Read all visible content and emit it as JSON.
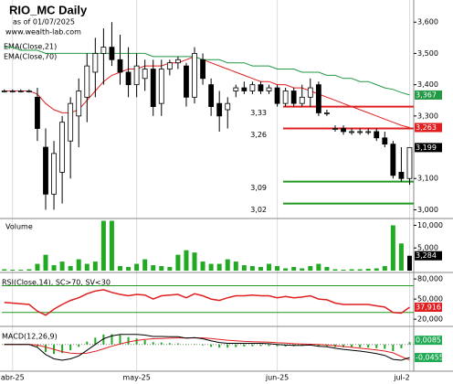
{
  "chart_data": [
    {
      "type": "candlestick",
      "title": "RIO_MC Daily",
      "subtitle": "as of 01/07/2025",
      "source": "www.wealth-lab.com",
      "ylim": [
        2.975,
        3.665
      ],
      "yticks": [
        {
          "value": 3.6,
          "label": "3,600"
        },
        {
          "value": 3.5,
          "label": "3,500"
        },
        {
          "value": 3.4,
          "label": "3,400"
        },
        {
          "value": 3.3,
          "label": "3,300"
        },
        {
          "value": 3.1,
          "label": "3,100"
        },
        {
          "value": 3.0,
          "label": "3,000"
        }
      ],
      "up_color": "#ffffff",
      "down_color": "#000000",
      "open": [
        3.38,
        3.38,
        3.38,
        3.38,
        3.36,
        3.2,
        3.05,
        3.12,
        3.22,
        3.3,
        3.36,
        3.44,
        3.5,
        3.52,
        3.48,
        3.44,
        3.4,
        3.42,
        3.45,
        3.34,
        3.45,
        3.47,
        3.46,
        3.36,
        3.48,
        3.4,
        3.34,
        3.32,
        3.38,
        3.39,
        3.38,
        3.4,
        3.38,
        3.39,
        3.34,
        3.38,
        3.34,
        3.36,
        3.4,
        3.31,
        3.26,
        3.26,
        3.25,
        3.25,
        3.25,
        3.25,
        3.23,
        3.21,
        3.12,
        3.1
      ],
      "high": [
        3.385,
        3.385,
        3.385,
        3.385,
        3.39,
        3.26,
        3.22,
        3.3,
        3.36,
        3.42,
        3.5,
        3.55,
        3.58,
        3.6,
        3.56,
        3.52,
        3.5,
        3.48,
        3.48,
        3.48,
        3.48,
        3.49,
        3.47,
        3.52,
        3.5,
        3.42,
        3.38,
        3.36,
        3.4,
        3.41,
        3.41,
        3.41,
        3.4,
        3.4,
        3.39,
        3.39,
        3.4,
        3.42,
        3.41,
        3.32,
        3.27,
        3.27,
        3.26,
        3.26,
        3.26,
        3.26,
        3.25,
        3.22,
        3.2,
        3.2
      ],
      "low": [
        3.375,
        3.375,
        3.375,
        3.375,
        3.22,
        3.0,
        3.0,
        3.02,
        3.1,
        3.2,
        3.28,
        3.36,
        3.4,
        3.46,
        3.4,
        3.36,
        3.36,
        3.38,
        3.3,
        3.3,
        3.43,
        3.45,
        3.33,
        3.34,
        3.4,
        3.3,
        3.25,
        3.26,
        3.36,
        3.37,
        3.37,
        3.37,
        3.37,
        3.33,
        3.33,
        3.33,
        3.33,
        3.33,
        3.3,
        3.3,
        3.25,
        3.24,
        3.24,
        3.24,
        3.24,
        3.22,
        3.2,
        3.1,
        3.09,
        3.08
      ],
      "close": [
        3.38,
        3.38,
        3.38,
        3.38,
        3.26,
        3.05,
        3.18,
        3.28,
        3.34,
        3.38,
        3.46,
        3.5,
        3.52,
        3.48,
        3.44,
        3.4,
        3.46,
        3.45,
        3.33,
        3.45,
        3.47,
        3.48,
        3.36,
        3.5,
        3.42,
        3.33,
        3.3,
        3.34,
        3.39,
        3.38,
        3.4,
        3.38,
        3.39,
        3.34,
        3.38,
        3.34,
        3.36,
        3.39,
        3.31,
        3.31,
        3.26,
        3.25,
        3.25,
        3.25,
        3.25,
        3.23,
        3.21,
        3.11,
        3.1,
        3.199
      ],
      "close_last_label": "3,199",
      "series": [
        {
          "name": "EMA(Close,21)",
          "color": "#e02020",
          "last_label": "3,263",
          "values": [
            3.38,
            3.38,
            3.38,
            3.38,
            3.37,
            3.34,
            3.32,
            3.31,
            3.31,
            3.32,
            3.35,
            3.38,
            3.41,
            3.43,
            3.44,
            3.45,
            3.45,
            3.46,
            3.46,
            3.46,
            3.47,
            3.47,
            3.48,
            3.49,
            3.48,
            3.47,
            3.46,
            3.45,
            3.44,
            3.43,
            3.42,
            3.41,
            3.41,
            3.4,
            3.4,
            3.39,
            3.39,
            3.38,
            3.37,
            3.36,
            3.35,
            3.34,
            3.33,
            3.32,
            3.31,
            3.3,
            3.29,
            3.28,
            3.27,
            3.263
          ]
        },
        {
          "name": "EMA(Close,70)",
          "color": "#229944",
          "last_label": "3,367",
          "values": [
            3.52,
            3.52,
            3.51,
            3.51,
            3.51,
            3.5,
            3.5,
            3.5,
            3.5,
            3.5,
            3.5,
            3.5,
            3.5,
            3.5,
            3.5,
            3.5,
            3.5,
            3.5,
            3.49,
            3.49,
            3.49,
            3.49,
            3.49,
            3.49,
            3.48,
            3.48,
            3.48,
            3.47,
            3.47,
            3.47,
            3.46,
            3.46,
            3.46,
            3.45,
            3.45,
            3.45,
            3.44,
            3.44,
            3.44,
            3.43,
            3.43,
            3.42,
            3.42,
            3.41,
            3.41,
            3.4,
            3.39,
            3.385,
            3.375,
            3.367
          ]
        }
      ],
      "levels": [
        {
          "value": 3.33,
          "label": "3,33",
          "color": "#e02020"
        },
        {
          "value": 3.26,
          "label": "3,26",
          "color": "#e02020"
        },
        {
          "value": 3.09,
          "label": "3,09",
          "color": "#229922"
        },
        {
          "value": 3.02,
          "label": "3,02",
          "color": "#229922"
        }
      ]
    },
    {
      "type": "bar",
      "title": "Volume",
      "color": "#22aa22",
      "last_color": "#000000",
      "ylim": [
        0,
        11.3
      ],
      "yticks": [
        {
          "value": 10,
          "label": "10,000"
        },
        {
          "value": 5,
          "label": "5,000"
        }
      ],
      "values": [
        0.3,
        0.2,
        0.2,
        0.3,
        1.5,
        3.5,
        1.2,
        2.0,
        1.0,
        2.5,
        1.5,
        2.0,
        11,
        11,
        1.0,
        0.8,
        1.5,
        2.5,
        1.2,
        1.0,
        0.8,
        3.5,
        4.5,
        4.0,
        2.0,
        1.5,
        1.5,
        2.5,
        2.0,
        1.2,
        1.0,
        0.8,
        1.5,
        1.0,
        0.5,
        0.8,
        0.5,
        1.0,
        1.5,
        0.8,
        0.3,
        0.2,
        0.3,
        0.3,
        0.4,
        0.5,
        1.0,
        10,
        6,
        3.284
      ],
      "last_label": "3,284"
    },
    {
      "type": "line",
      "title": "RSI(Close,14), SC>70, SV<30",
      "color": "#e02020",
      "band_color": "#229922",
      "ylim": [
        12,
        87
      ],
      "yticks": [
        {
          "value": 80,
          "label": "80,000"
        },
        {
          "value": 50,
          "label": "50,000"
        },
        {
          "value": 20,
          "label": "20,000"
        }
      ],
      "bands": [
        70,
        30
      ],
      "values": [
        45,
        44,
        43,
        42,
        32,
        26,
        35,
        42,
        48,
        52,
        58,
        62,
        64,
        60,
        57,
        55,
        57,
        56,
        50,
        55,
        56,
        57,
        52,
        58,
        55,
        50,
        48,
        52,
        55,
        55,
        56,
        55,
        55,
        52,
        54,
        52,
        53,
        55,
        50,
        49,
        44,
        42,
        42,
        42,
        42,
        40,
        38,
        30,
        29,
        37.916
      ],
      "last_label": "37,916"
    },
    {
      "type": "macd",
      "title": "MACD(12,26,9)",
      "xlim": [
        -0.3,
        49.5
      ],
      "xticks": [
        {
          "value": 1,
          "label": "abr-25"
        },
        {
          "value": 16,
          "label": "may-25"
        },
        {
          "value": 33,
          "label": "jun-25"
        },
        {
          "value": 49,
          "label": "jul-2"
        }
      ],
      "ylim": [
        -0.09,
        0.06
      ],
      "macd_color": "#000000",
      "signal_color": "#e02020",
      "histogram_color": "#22aa22",
      "label_color": "#22aa55",
      "macd": [
        0,
        0,
        0,
        0,
        -0.01,
        -0.035,
        -0.05,
        -0.055,
        -0.05,
        -0.04,
        -0.02,
        0,
        0.02,
        0.03,
        0.035,
        0.035,
        0.035,
        0.033,
        0.028,
        0.028,
        0.027,
        0.027,
        0.022,
        0.024,
        0.02,
        0.013,
        0.007,
        0.004,
        0.004,
        0.004,
        0.004,
        0.004,
        0.003,
        0,
        -0.002,
        -0.003,
        -0.003,
        -0.002,
        -0.006,
        -0.008,
        -0.013,
        -0.017,
        -0.02,
        -0.023,
        -0.027,
        -0.032,
        -0.038,
        -0.052,
        -0.055,
        -0.0455
      ],
      "signal": [
        0,
        0,
        0,
        0,
        -0.002,
        -0.009,
        -0.017,
        -0.025,
        -0.03,
        -0.032,
        -0.03,
        -0.024,
        -0.015,
        -0.006,
        0.002,
        0.009,
        0.014,
        0.018,
        0.02,
        0.021,
        0.022,
        0.023,
        0.023,
        0.023,
        0.023,
        0.021,
        0.018,
        0.015,
        0.013,
        0.011,
        0.01,
        0.009,
        0.008,
        0.006,
        0.005,
        0.003,
        0.002,
        0.001,
        0,
        -0.002,
        -0.004,
        -0.007,
        -0.01,
        -0.013,
        -0.016,
        -0.019,
        -0.023,
        -0.029,
        -0.042,
        -0.054
      ],
      "histogram": [
        0,
        0,
        0,
        0,
        -0.008,
        -0.026,
        -0.033,
        -0.03,
        -0.02,
        -0.008,
        0.01,
        0.024,
        0.035,
        0.036,
        0.033,
        0.026,
        0.021,
        0.015,
        0.008,
        0.007,
        0.005,
        0.004,
        -0.001,
        0.001,
        -0.003,
        -0.008,
        -0.011,
        -0.011,
        -0.009,
        -0.007,
        -0.006,
        -0.005,
        -0.005,
        -0.006,
        -0.007,
        -0.006,
        -0.005,
        -0.003,
        -0.006,
        -0.006,
        -0.009,
        -0.01,
        -0.01,
        -0.01,
        -0.011,
        -0.013,
        -0.015,
        -0.023,
        -0.013,
        0.0085
      ],
      "macd_last_label": "-0,0455",
      "histogram_last_label": "0,0085"
    }
  ]
}
